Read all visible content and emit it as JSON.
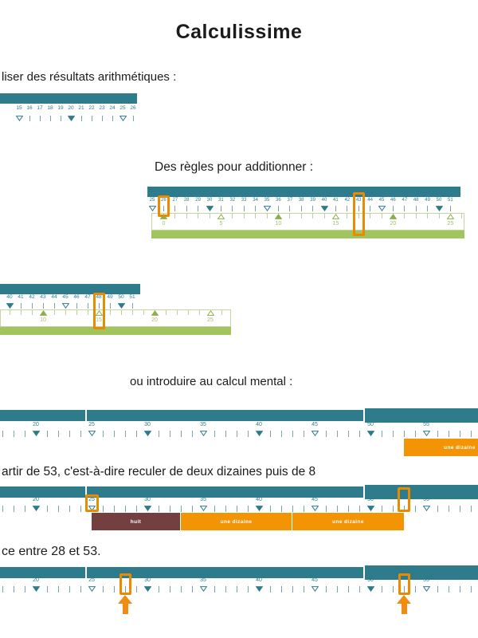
{
  "page": {
    "title": "Calculissime",
    "intro_text": "liser des résultats arithmétiques :",
    "addition_heading": "Des règles pour additionner :",
    "mental_heading": "ou introduire au calcul mental :",
    "recul_text": "artir de 53, c'est-à-dire reculer de deux dizaines puis de 8",
    "difference_text": "ce entre 28 et 53."
  },
  "colors": {
    "teal": "#2e7b8c",
    "tick_teal": "#7aa3ae",
    "green_bar": "#a2c45f",
    "olive_label": "#a9ba72",
    "green_triangle": "#8fae4a",
    "orange": "#f39405",
    "maroon": "#743f3f",
    "highlight_border": "#ea8a00",
    "arrow_orange": "#f08c12"
  },
  "number_lines": [
    {
      "id": "memorize",
      "min": 15,
      "max": 26
    },
    {
      "id": "addition1",
      "top_min": 25,
      "top_max": 51,
      "bottom_min": 0,
      "bottom_max": 26,
      "bottom_zero_at": 26,
      "highlights": [
        26,
        43
      ]
    },
    {
      "id": "addition2",
      "top_min": 40,
      "top_max": 51,
      "bottom_min": 7,
      "bottom_max": 26,
      "bottom_zero_at": 33,
      "highlights": [
        48
      ]
    },
    {
      "id": "mental1",
      "min": 17,
      "max": 59,
      "bars": [
        {
          "label": "une dizaine",
          "from": 53,
          "to": 63,
          "style": "orange"
        }
      ]
    },
    {
      "id": "mental2",
      "min": 17,
      "max": 59,
      "highlights": [
        25,
        53
      ],
      "bars": [
        {
          "label": "huit",
          "from": 25,
          "to": 33,
          "style": "maroon"
        },
        {
          "label": "une dizaine",
          "from": 33,
          "to": 43,
          "style": "orange"
        },
        {
          "label": "une dizaine",
          "from": 43,
          "to": 53,
          "style": "orange"
        }
      ]
    },
    {
      "id": "difference",
      "min": 17,
      "max": 59,
      "highlights": [
        28,
        53
      ],
      "arrows": [
        28,
        53
      ]
    }
  ]
}
